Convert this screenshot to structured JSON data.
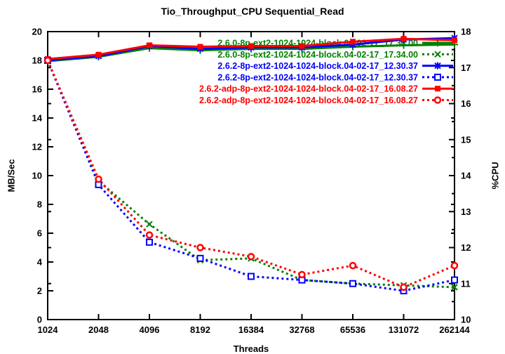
{
  "chart_data": {
    "type": "line",
    "title": "Tio_Throughput_CPU Sequential_Read",
    "xlabel": "Threads",
    "ylabel_left": "MB/Sec",
    "ylabel_right": "%CPU",
    "grid": false,
    "legend_position": "top-right-inside",
    "x_categories": [
      "1024",
      "2048",
      "4096",
      "8192",
      "16384",
      "32768",
      "65536",
      "131072",
      "262144"
    ],
    "y_left_axis": {
      "min": 0,
      "max": 20,
      "ticks": [
        0,
        2,
        4,
        6,
        8,
        10,
        12,
        14,
        16,
        18,
        20
      ]
    },
    "y_right_axis": {
      "min": 10,
      "max": 18,
      "ticks": [
        10,
        11,
        12,
        13,
        14,
        15,
        16,
        17,
        18
      ],
      "minor_step": 0.5
    },
    "series": [
      {
        "label": "2.6.0-8p-ext2-1024-1024-block.04-02-17_17.34.00",
        "color": "#008000",
        "style": "solid",
        "marker": "plus",
        "axis": "left",
        "values": [
          17.95,
          18.25,
          18.85,
          18.7,
          18.8,
          18.8,
          18.95,
          19.05,
          19.1
        ]
      },
      {
        "label": "2.6.0-8p-ext2-1024-1024-block.04-02-17_17.34.00",
        "color": "#008000",
        "style": "dotted",
        "marker": "cross",
        "axis": "right",
        "values": [
          17.2,
          13.85,
          12.65,
          11.65,
          11.7,
          11.1,
          11.0,
          10.95,
          10.9
        ]
      },
      {
        "label": "2.6.2-8p-ext2-1024-1024-block.04-02-17_12.30.37",
        "color": "#0000ff",
        "style": "solid",
        "marker": "star",
        "axis": "left",
        "values": [
          18.0,
          18.3,
          19.0,
          18.8,
          18.9,
          18.9,
          19.1,
          19.45,
          19.55
        ]
      },
      {
        "label": "2.6.2-8p-ext2-1024-1024-block.04-02-17_12.30.37",
        "color": "#0000ff",
        "style": "dotted",
        "marker": "square-open",
        "axis": "right",
        "values": [
          17.2,
          13.75,
          12.15,
          11.7,
          11.2,
          11.1,
          11.0,
          10.8,
          11.1
        ]
      },
      {
        "label": "2.6.2-adp-8p-ext2-1024-1024-block.04-02-17_16.08.27",
        "color": "#ff0000",
        "style": "solid",
        "marker": "square-filled",
        "axis": "left",
        "values": [
          18.1,
          18.4,
          19.05,
          18.95,
          19.0,
          19.0,
          19.3,
          19.5,
          19.4
        ]
      },
      {
        "label": "2.6.2-adp-8p-ext2-1024-1024-block.04-02-17_16.08.27",
        "color": "#ff0000",
        "style": "dotted",
        "marker": "circle-open",
        "axis": "right",
        "values": [
          17.2,
          13.9,
          12.35,
          12.0,
          11.75,
          11.25,
          11.5,
          10.9,
          11.5
        ]
      }
    ],
    "colors": {
      "axis": "#000000",
      "background": "#ffffff"
    }
  }
}
